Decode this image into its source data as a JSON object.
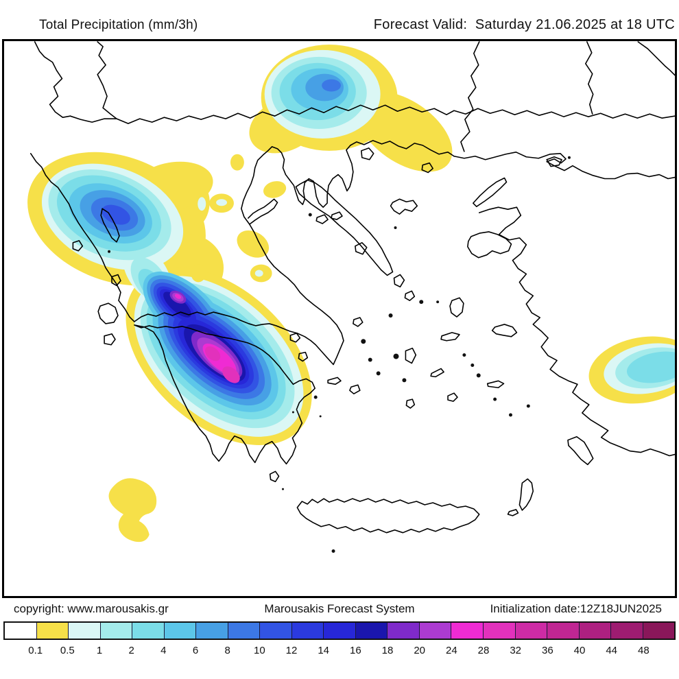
{
  "header": {
    "title": "Total Precipitation (mm/3h)",
    "forecast": "Forecast Valid:  Saturday 21.06.2025 at 18 UTC"
  },
  "footer": {
    "copyright": "copyright: www.marousakis.gr",
    "system": "Marousakis Forecast System",
    "initialization": "Initialization date:12Z18JUN2025"
  },
  "colorbar": {
    "unit": "mm/3h",
    "ticks": [
      "0.1",
      "0.5",
      "1",
      "2",
      "4",
      "6",
      "8",
      "10",
      "12",
      "14",
      "16",
      "18",
      "20",
      "24",
      "28",
      "32",
      "36",
      "40",
      "44",
      "48"
    ],
    "cells": [
      "#FFFFFF",
      "#F6E049",
      "#DBF7F5",
      "#A4EBEB",
      "#7BDDE8",
      "#5CC6E9",
      "#47A0E5",
      "#3C78E5",
      "#3254E4",
      "#2B3ADF",
      "#2727D8",
      "#1A16AD",
      "#7F2ACA",
      "#AC3BD1",
      "#EF2BD3",
      "#E231BC",
      "#CD2BA5",
      "#C02693",
      "#AE2081",
      "#9E1C71",
      "#8A175A"
    ]
  }
}
